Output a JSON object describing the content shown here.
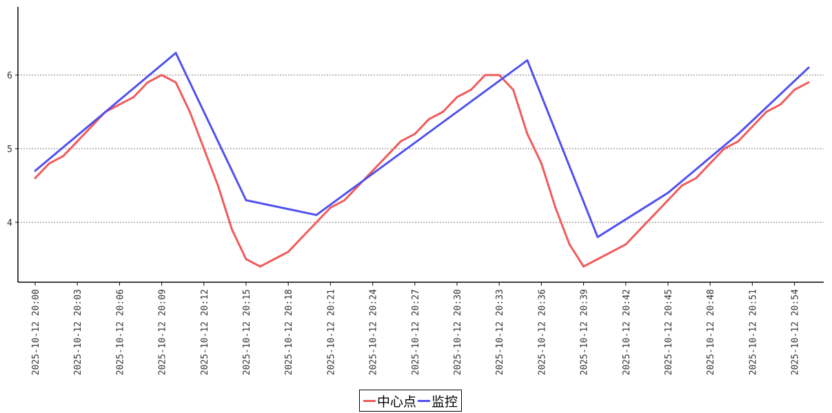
{
  "chart_data": {
    "type": "line",
    "title": "",
    "xlabel": "",
    "ylabel": "",
    "ylim": [
      3.19,
      6.93
    ],
    "yticks": [
      "4",
      "5",
      "6"
    ],
    "ytick_values": [
      4,
      5,
      6
    ],
    "grid": "horizontal dashed",
    "legend_position": "bottom-center",
    "x_ticks": [
      "2025-10-12 20:00",
      "2025-10-12 20:03",
      "2025-10-12 20:06",
      "2025-10-12 20:09",
      "2025-10-12 20:12",
      "2025-10-12 20:15",
      "2025-10-12 20:18",
      "2025-10-12 20:21",
      "2025-10-12 20:24",
      "2025-10-12 20:27",
      "2025-10-12 20:30",
      "2025-10-12 20:33",
      "2025-10-12 20:36",
      "2025-10-12 20:39",
      "2025-10-12 20:42",
      "2025-10-12 20:45",
      "2025-10-12 20:48",
      "2025-10-12 20:51",
      "2025-10-12 20:54"
    ],
    "x_tick_minutes": [
      0,
      3,
      6,
      9,
      12,
      15,
      18,
      21,
      24,
      27,
      30,
      33,
      36,
      39,
      42,
      45,
      48,
      51,
      54
    ],
    "series": [
      {
        "name": "中心点",
        "color": "#f05a5a",
        "x_minutes": [
          0,
          1,
          2,
          3,
          4,
          5,
          6,
          7,
          8,
          9,
          10,
          11,
          12,
          13,
          14,
          15,
          16,
          17,
          18,
          19,
          20,
          21,
          22,
          23,
          24,
          25,
          26,
          27,
          28,
          29,
          30,
          31,
          32,
          33,
          34,
          35,
          36,
          37,
          38,
          39,
          40,
          41,
          42,
          43,
          44,
          45,
          46,
          47,
          48,
          49,
          50,
          51,
          52,
          53,
          54,
          55
        ],
        "values": [
          4.6,
          4.8,
          4.9,
          5.1,
          5.3,
          5.5,
          5.6,
          5.7,
          5.9,
          6.0,
          5.9,
          5.5,
          5.0,
          4.5,
          3.9,
          3.5,
          3.4,
          3.5,
          3.6,
          3.8,
          4.0,
          4.2,
          4.3,
          4.5,
          4.7,
          4.9,
          5.1,
          5.2,
          5.4,
          5.5,
          5.7,
          5.8,
          6.0,
          6.0,
          5.8,
          5.2,
          4.8,
          4.2,
          3.7,
          3.4,
          3.5,
          3.6,
          3.7,
          3.9,
          4.1,
          4.3,
          4.5,
          4.6,
          4.8,
          5.0,
          5.1,
          5.3,
          5.5,
          5.6,
          5.8,
          5.9
        ]
      },
      {
        "name": "监控",
        "color": "#5050f0",
        "x_minutes": [
          0,
          10,
          15,
          20,
          35,
          40,
          45,
          50,
          55
        ],
        "values": [
          4.7,
          6.3,
          4.3,
          4.1,
          6.2,
          3.8,
          4.4,
          5.2,
          6.1
        ]
      }
    ]
  }
}
